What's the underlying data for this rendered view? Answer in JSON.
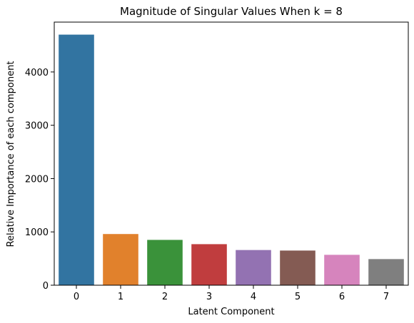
{
  "chart_data": {
    "type": "bar",
    "title": "Magnitude of Singular Values When k = 8",
    "xlabel": "Latent Component",
    "ylabel": "Relative Importance of each component",
    "categories": [
      "0",
      "1",
      "2",
      "3",
      "4",
      "5",
      "6",
      "7"
    ],
    "values": [
      4700,
      960,
      850,
      770,
      660,
      650,
      570,
      490
    ],
    "colors": [
      "#3274a1",
      "#e1812c",
      "#3a923a",
      "#c03d3e",
      "#9372b2",
      "#845b53",
      "#d684bd",
      "#7f7f7f"
    ],
    "ylim": [
      0,
      4935
    ],
    "yticks": [
      "0",
      "1000",
      "2000",
      "3000",
      "4000"
    ],
    "grid": false,
    "legend": "none"
  }
}
